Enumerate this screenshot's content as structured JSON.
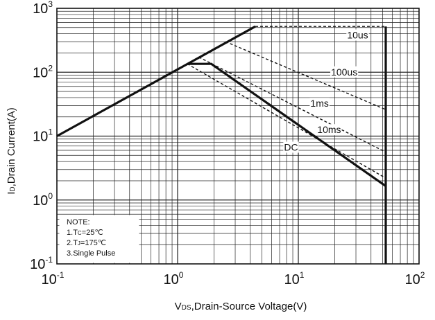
{
  "chart_data": {
    "type": "line",
    "scale": "log-log",
    "xlabel": "VDS,Drain-Source Voltage(V)",
    "xlabel_parts": {
      "sym": "V",
      "sub": "DS",
      "rest": ",Drain-Source Voltage(V)"
    },
    "ylabel": "ID,Drain Current(A)",
    "ylabel_parts": {
      "sym": "I",
      "sub": "D",
      "rest": ",Drain Current(A)"
    },
    "xlim": [
      0.1,
      100
    ],
    "ylim": [
      0.1,
      1000
    ],
    "grid": true,
    "x_ticks": [
      {
        "base": "10",
        "exp": "-1",
        "value": 0.1
      },
      {
        "base": "10",
        "exp": "0",
        "value": 1
      },
      {
        "base": "10",
        "exp": "1",
        "value": 10
      },
      {
        "base": "10",
        "exp": "2",
        "value": 100
      }
    ],
    "y_ticks": [
      {
        "base": "10",
        "exp": "-1",
        "value": 0.1
      },
      {
        "base": "10",
        "exp": "0",
        "value": 1
      },
      {
        "base": "10",
        "exp": "1",
        "value": 10
      },
      {
        "base": "10",
        "exp": "2",
        "value": 100
      },
      {
        "base": "10",
        "exp": "3",
        "value": 1000
      }
    ],
    "series": [
      {
        "id": "rdson",
        "style": "solid-thick",
        "x": [
          0.1,
          4.4
        ],
        "y": [
          10,
          520
        ]
      },
      {
        "id": "dc",
        "style": "solid-thick",
        "x": [
          1.2,
          1.9,
          53
        ],
        "y": [
          135,
          135,
          1.65
        ]
      },
      {
        "id": "vmax",
        "style": "solid-thick",
        "x": [
          53,
          53
        ],
        "y": [
          520,
          0.1
        ]
      },
      {
        "id": "p10us",
        "style": "dashed",
        "x": [
          4.4,
          53,
          53
        ],
        "y": [
          520,
          520,
          175
        ]
      },
      {
        "id": "p100us",
        "style": "dashed",
        "x": [
          2.5,
          53
        ],
        "y": [
          300,
          26
        ]
      },
      {
        "id": "p1ms",
        "style": "dashed",
        "x": [
          1.5,
          53
        ],
        "y": [
          172,
          5.6
        ]
      },
      {
        "id": "p10ms",
        "style": "dashed",
        "x": [
          1.2,
          53
        ],
        "y": [
          135,
          2.2
        ]
      }
    ],
    "annotations": [
      {
        "text": "10us",
        "x": 31,
        "y": 370
      },
      {
        "text": "100us",
        "x": 24,
        "y": 98
      },
      {
        "text": "1ms",
        "x": 15,
        "y": 31.5
      },
      {
        "text": "10ms",
        "x": 18,
        "y": 12.2
      },
      {
        "text": "DC",
        "x": 8.7,
        "y": 6.5
      }
    ]
  },
  "note": {
    "title": "NOTE:",
    "lines": [
      {
        "num": "1.",
        "sym": "T",
        "sub": "C",
        "rest": "=25℃"
      },
      {
        "num": "2.",
        "sym": "T",
        "sub": "J",
        "rest": "=175℃"
      },
      {
        "num": "3.",
        "sym": "",
        "sub": "",
        "rest": "Single Pulse"
      }
    ]
  }
}
